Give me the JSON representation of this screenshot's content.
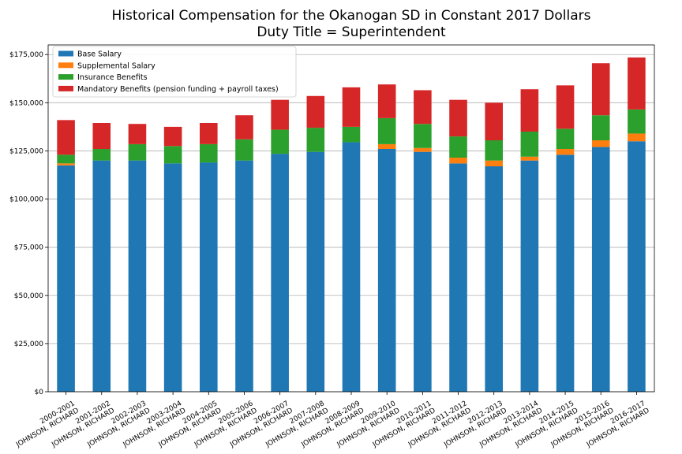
{
  "chart_data": {
    "type": "bar",
    "stacked": true,
    "title": "Historical Compensation for the Okanogan SD in Constant 2017 Dollars",
    "subtitle": "Duty Title = Superintendent",
    "xlabel": "",
    "ylabel": "",
    "ylim": [
      0,
      180000
    ],
    "yticks": [
      0,
      25000,
      50000,
      75000,
      100000,
      125000,
      150000,
      175000
    ],
    "ytick_labels": [
      "$0",
      "$25,000",
      "$50,000",
      "$75,000",
      "$100,000",
      "$125,000",
      "$150,000",
      "$175,000"
    ],
    "grid": "horizontal",
    "legend_position": "top-left",
    "categories": [
      [
        "2000-2001",
        "JOHNSON, RICHARD"
      ],
      [
        "2001-2002",
        "JOHNSON, RICHARD"
      ],
      [
        "2002-2003",
        "JOHNSON, RICHARD"
      ],
      [
        "2003-2004",
        "JOHNSON, RICHARD"
      ],
      [
        "2004-2005",
        "JOHNSON, RICHARD"
      ],
      [
        "2005-2006",
        "JOHNSON, RICHARD"
      ],
      [
        "2006-2007",
        "JOHNSON, RICHARD"
      ],
      [
        "2007-2008",
        "JOHNSON, RICHARD"
      ],
      [
        "2008-2009",
        "JOHNSON, RICHARD"
      ],
      [
        "2009-2010",
        "JOHNSON, RICHARD"
      ],
      [
        "2010-2011",
        "JOHNSON, RICHARD"
      ],
      [
        "2011-2012",
        "JOHNSON, RICHARD"
      ],
      [
        "2012-2013",
        "JOHNSON, RICHARD"
      ],
      [
        "2013-2014",
        "JOHNSON, RICHARD"
      ],
      [
        "2014-2015",
        "JOHNSON, RICHARD"
      ],
      [
        "2015-2016",
        "JOHNSON, RICHARD"
      ],
      [
        "2016-2017",
        "JOHNSON, RICHARD"
      ]
    ],
    "series": [
      {
        "name": "Base Salary",
        "color": "#1f77b4",
        "values": [
          117500,
          120000,
          120000,
          118500,
          119000,
          120000,
          123500,
          124500,
          129500,
          126000,
          124500,
          118500,
          117000,
          120000,
          123000,
          127000,
          130000
        ]
      },
      {
        "name": "Supplemental Salary",
        "color": "#ff7f0e",
        "values": [
          1000,
          0,
          0,
          0,
          0,
          0,
          0,
          0,
          0,
          2500,
          2000,
          3000,
          3000,
          2000,
          3000,
          3500,
          4000
        ]
      },
      {
        "name": "Insurance Benefits",
        "color": "#2ca02c",
        "values": [
          4500,
          6000,
          8500,
          9000,
          9500,
          11000,
          12500,
          12500,
          8000,
          13500,
          12500,
          11000,
          10500,
          13000,
          10500,
          13000,
          12500
        ]
      },
      {
        "name": "Mandatory Benefits (pension funding + payroll taxes)",
        "color": "#d62728",
        "values": [
          18000,
          13500,
          10500,
          10000,
          11000,
          12500,
          15500,
          16500,
          20500,
          17500,
          17500,
          19000,
          19500,
          22000,
          22500,
          27000,
          27000
        ]
      }
    ]
  },
  "style": {
    "axis_color": "#000000",
    "grid_color": "#b0b0b0"
  }
}
